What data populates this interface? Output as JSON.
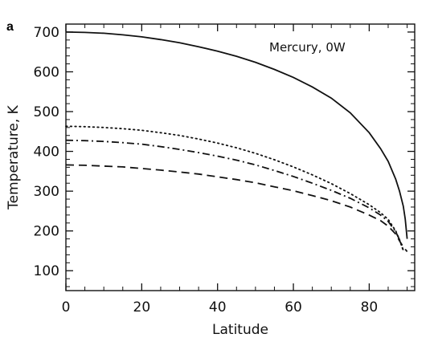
{
  "panel_label": "a",
  "annotation": "Mercury, 0W",
  "chart_data": {
    "type": "line",
    "xlabel": "Latitude",
    "ylabel": "Temperature, K",
    "xlim": [
      0,
      92
    ],
    "ylim": [
      50,
      720
    ],
    "x_ticks": [
      0,
      20,
      40,
      60,
      80
    ],
    "y_ticks": [
      100,
      200,
      300,
      400,
      500,
      600,
      700
    ],
    "grid": false,
    "series": [
      {
        "line_style": "solid",
        "x": [
          0,
          5,
          10,
          15,
          20,
          25,
          30,
          35,
          40,
          45,
          50,
          55,
          60,
          65,
          70,
          75,
          80,
          83,
          85,
          87,
          88,
          89,
          89.5,
          90
        ],
        "y": [
          700,
          699,
          697,
          693,
          688,
          681,
          673,
          663,
          652,
          639,
          624,
          606,
          586,
          562,
          534,
          497,
          447,
          407,
          375,
          330,
          300,
          262,
          230,
          180
        ]
      },
      {
        "line_style": "dotted",
        "x": [
          0,
          5,
          10,
          15,
          20,
          25,
          30,
          35,
          40,
          45,
          50,
          55,
          60,
          65,
          70,
          75,
          80,
          83,
          85,
          87,
          88,
          89
        ],
        "y": [
          463,
          462,
          460,
          457,
          453,
          447,
          440,
          431,
          421,
          409,
          395,
          379,
          361,
          341,
          319,
          294,
          266,
          246,
          229,
          200,
          178,
          150
        ]
      },
      {
        "line_style": "dash-dot",
        "x": [
          0,
          5,
          10,
          15,
          20,
          25,
          30,
          35,
          40,
          45,
          50,
          55,
          60,
          65,
          70,
          75,
          80,
          83,
          85,
          87,
          88,
          89
        ],
        "y": [
          428,
          427,
          425,
          422,
          418,
          412,
          405,
          397,
          388,
          378,
          366,
          352,
          337,
          320,
          302,
          282,
          258,
          240,
          224,
          198,
          178,
          152
        ]
      },
      {
        "line_style": "dashed",
        "x": [
          0,
          5,
          10,
          15,
          20,
          25,
          30,
          35,
          40,
          45,
          50,
          55,
          60,
          65,
          70,
          75,
          80,
          83,
          85,
          87,
          88,
          89,
          90
        ],
        "y": [
          366,
          365,
          363,
          361,
          357,
          353,
          348,
          343,
          336,
          329,
          321,
          311,
          301,
          289,
          276,
          260,
          240,
          226,
          212,
          192,
          175,
          160,
          148
        ]
      }
    ]
  }
}
